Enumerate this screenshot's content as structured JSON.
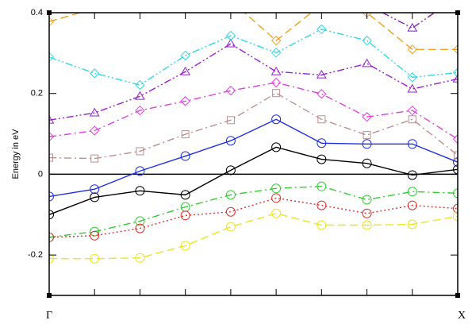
{
  "chart_data": {
    "type": "line",
    "y_label": "Energy in eV",
    "categories": [
      "Γ",
      null,
      null,
      null,
      null,
      null,
      null,
      null,
      null,
      "X"
    ],
    "ylim": [
      -0.3,
      0.4
    ],
    "yticks": [
      -0.2,
      0,
      0.2,
      0.4
    ],
    "zero_line": true,
    "series": [
      {
        "color": "#000000",
        "dash": "solid",
        "marker": "circle",
        "values": [
          -0.1,
          -0.057,
          -0.041,
          -0.051,
          0.01,
          0.067,
          0.037,
          0.027,
          -0.002,
          0.012
        ]
      },
      {
        "color": "#2030e0",
        "dash": "solid",
        "marker": "circle",
        "values": [
          -0.055,
          -0.037,
          0.008,
          0.045,
          0.083,
          0.136,
          0.077,
          0.075,
          0.075,
          0.03
        ]
      },
      {
        "color": "#33cc33",
        "dash": "dashdot",
        "marker": "circle",
        "values": [
          -0.156,
          -0.142,
          -0.116,
          -0.081,
          -0.051,
          -0.035,
          -0.03,
          -0.063,
          -0.043,
          -0.047
        ]
      },
      {
        "color": "#e03030",
        "dash": "dotted",
        "marker": "circle",
        "values": [
          -0.156,
          -0.152,
          -0.134,
          -0.102,
          -0.093,
          -0.059,
          -0.077,
          -0.097,
          -0.077,
          -0.085
        ]
      },
      {
        "color": "#e8e820",
        "dash": "dashed",
        "marker": "circle",
        "values": [
          -0.209,
          -0.209,
          -0.207,
          -0.177,
          -0.13,
          -0.097,
          -0.126,
          -0.126,
          -0.124,
          -0.104
        ]
      },
      {
        "color": "#bc8f8f",
        "dash": "dashdot",
        "marker": "square",
        "values": [
          0.041,
          0.039,
          0.057,
          0.099,
          0.134,
          0.201,
          0.136,
          0.097,
          0.136,
          0.047
        ]
      },
      {
        "color": "#e040e0",
        "dash": "dashdot",
        "marker": "diamond",
        "values": [
          0.093,
          0.108,
          0.158,
          0.181,
          0.207,
          0.227,
          0.199,
          0.142,
          0.158,
          0.087
        ]
      },
      {
        "color": "#9a1fd0",
        "dash": "dashdotdot",
        "marker": "triangle",
        "values": [
          0.134,
          0.152,
          0.193,
          0.254,
          0.323,
          0.254,
          0.246,
          0.274,
          0.211,
          0.236
        ]
      },
      {
        "color": "#30d8e0",
        "dash": "dashdotdot",
        "marker": "diamond",
        "values": [
          0.29,
          0.25,
          0.221,
          0.294,
          0.343,
          0.301,
          0.359,
          0.331,
          0.24,
          0.252
        ]
      },
      {
        "color": "#f0a020",
        "dash": "dashed",
        "marker": "diamond",
        "values": [
          0.378,
          0.41,
          0.45,
          0.47,
          0.43,
          0.331,
          0.42,
          0.4,
          0.309,
          0.309
        ]
      },
      {
        "color": "#8020c0",
        "dash": "dashdotdot",
        "marker": "triangle",
        "values": [
          null,
          null,
          null,
          null,
          null,
          null,
          null,
          0.42,
          0.362,
          0.44
        ]
      }
    ]
  }
}
